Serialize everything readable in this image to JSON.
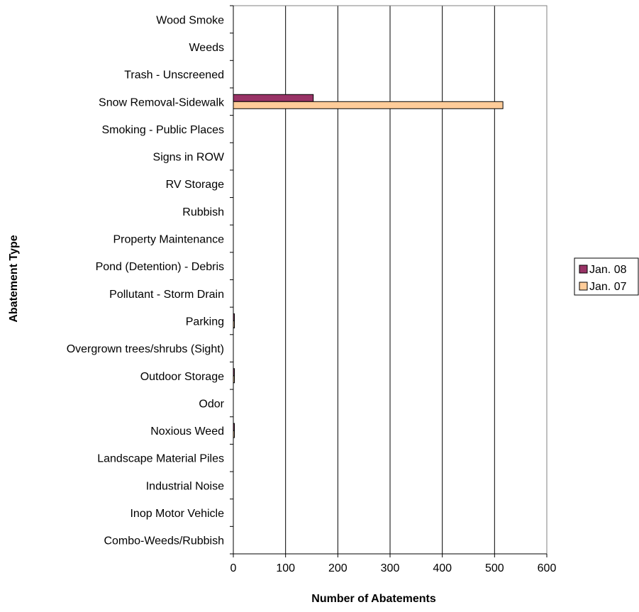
{
  "chart_data": {
    "type": "bar",
    "orientation": "horizontal",
    "xlabel": "Number of Abatements",
    "ylabel": "Abatement Type",
    "xlim": [
      0,
      600
    ],
    "xticks": [
      "0",
      "100",
      "200",
      "300",
      "400",
      "500",
      "600"
    ],
    "grid": "vertical",
    "legend_position": "right",
    "categories": [
      "Wood Smoke",
      "Weeds",
      "Trash - Unscreened",
      "Snow Removal-Sidewalk",
      "Smoking - Public Places",
      "Signs in ROW",
      "RV Storage",
      "Rubbish",
      "Property Maintenance",
      "Pond (Detention) - Debris",
      "Pollutant - Storm Drain",
      "Parking",
      "Overgrown trees/shrubs (Sight)",
      "Outdoor Storage",
      "Odor",
      "Noxious Weed",
      "Landscape Material Piles",
      "Industrial Noise",
      "Inop Motor Vehicle",
      "Combo-Weeds/Rubbish"
    ],
    "series": [
      {
        "name": "Jan. 08",
        "color": "#993366",
        "values": [
          0,
          0,
          0,
          153,
          0,
          0,
          0,
          0,
          0,
          0,
          0,
          1,
          0,
          1,
          0,
          1,
          0,
          0,
          0,
          0
        ]
      },
      {
        "name": "Jan. 07",
        "color": "#FFCC99",
        "values": [
          0,
          0,
          0,
          516,
          0,
          0,
          0,
          0,
          0,
          0,
          0,
          1,
          0,
          1,
          0,
          1,
          0,
          0,
          0,
          0
        ]
      }
    ]
  }
}
